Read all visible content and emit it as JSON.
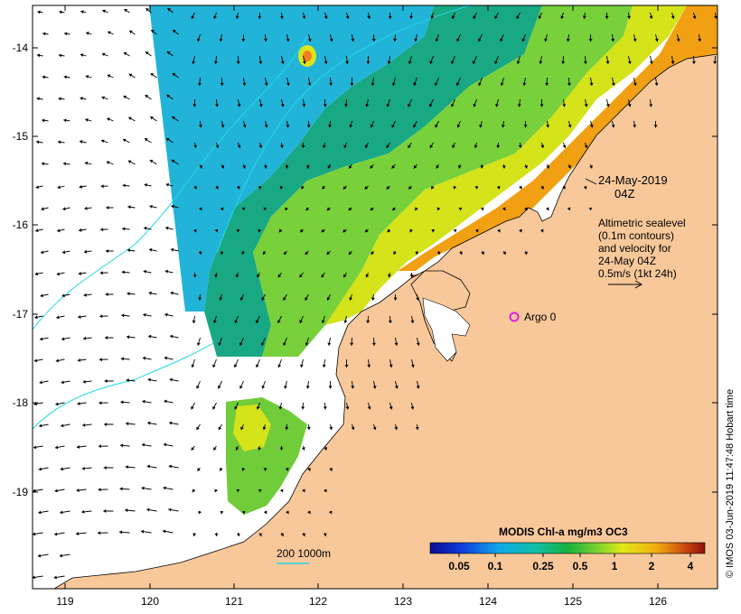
{
  "map": {
    "date_line": "24-May-2019",
    "time_line": "04Z",
    "sealevel_lines": [
      "Altimetric sealevel",
      "(0.1m contours)",
      "and velocity for",
      "24-May 04Z",
      "0.5m/s (1kt 24h)"
    ],
    "argo_label": "Argo 0",
    "scale_label": "200  1000m",
    "credit": "© IMOS 03-Jun-2019 11:47:48 Hobart time",
    "colorbar_title": "MODIS Chl-a mg/m3 OC3",
    "colorbar_ticks": [
      "0.05",
      "0.1",
      "0.25",
      "0.5",
      "1",
      "2",
      "4"
    ],
    "lat_ticks": [
      "-14",
      "-15",
      "-16",
      "-17",
      "-18",
      "-19"
    ],
    "lon_ticks": [
      "119",
      "120",
      "121",
      "122",
      "123",
      "124",
      "125",
      "126"
    ],
    "colors": {
      "land": "#f8c89a",
      "deep_ocean": "#21b8d8",
      "mid_ocean": "#16a886",
      "shelf": "#7dd23c",
      "coastal": "#d8e418",
      "high": "#f2a010",
      "very_high": "#b0401c",
      "argo": "#e020e0",
      "contour": "#20d8e8"
    }
  }
}
